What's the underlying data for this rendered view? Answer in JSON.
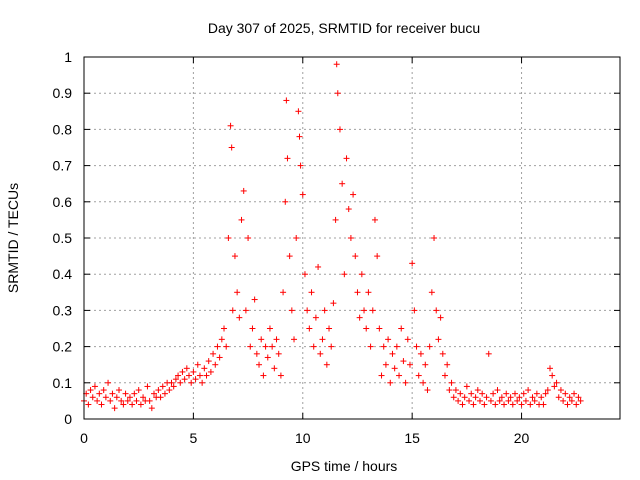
{
  "chart_data": {
    "type": "scatter",
    "title": "Day 307 of 2025, SRMTID for receiver bucu",
    "xlabel": "GPS time / hours",
    "ylabel": "SRMTID / TECUs",
    "xlim": [
      0,
      24.5
    ],
    "ylim": [
      0,
      1
    ],
    "xticks": [
      0,
      5,
      10,
      15,
      20
    ],
    "xtick_labels": [
      "0",
      "5",
      "10",
      "15",
      "20"
    ],
    "yticks": [
      0,
      0.1,
      0.2,
      0.3,
      0.4,
      0.5,
      0.6,
      0.7,
      0.8,
      0.9,
      1
    ],
    "ytick_labels": [
      "0",
      "0.1",
      "0.2",
      "0.3",
      "0.4",
      "0.5",
      "0.6",
      "0.7",
      "0.8",
      "0.9",
      "1"
    ],
    "grid": true,
    "marker": "+",
    "series": [
      {
        "name": "SRMTID",
        "color": "#ff0000",
        "points": [
          [
            0.0,
            0.05
          ],
          [
            0.1,
            0.07
          ],
          [
            0.2,
            0.04
          ],
          [
            0.3,
            0.08
          ],
          [
            0.4,
            0.06
          ],
          [
            0.5,
            0.09
          ],
          [
            0.6,
            0.05
          ],
          [
            0.7,
            0.07
          ],
          [
            0.8,
            0.04
          ],
          [
            0.9,
            0.08
          ],
          [
            1.0,
            0.06
          ],
          [
            1.1,
            0.1
          ],
          [
            1.2,
            0.05
          ],
          [
            1.3,
            0.07
          ],
          [
            1.4,
            0.03
          ],
          [
            1.5,
            0.06
          ],
          [
            1.6,
            0.08
          ],
          [
            1.7,
            0.05
          ],
          [
            1.8,
            0.04
          ],
          [
            1.9,
            0.07
          ],
          [
            2.0,
            0.05
          ],
          [
            2.1,
            0.06
          ],
          [
            2.2,
            0.04
          ],
          [
            2.3,
            0.07
          ],
          [
            2.4,
            0.05
          ],
          [
            2.5,
            0.08
          ],
          [
            2.6,
            0.04
          ],
          [
            2.7,
            0.06
          ],
          [
            2.8,
            0.05
          ],
          [
            2.9,
            0.09
          ],
          [
            3.0,
            0.05
          ],
          [
            3.1,
            0.03
          ],
          [
            3.2,
            0.07
          ],
          [
            3.3,
            0.06
          ],
          [
            3.4,
            0.08
          ],
          [
            3.5,
            0.06
          ],
          [
            3.6,
            0.09
          ],
          [
            3.7,
            0.07
          ],
          [
            3.8,
            0.1
          ],
          [
            3.9,
            0.08
          ],
          [
            4.0,
            0.1
          ],
          [
            4.1,
            0.09
          ],
          [
            4.2,
            0.11
          ],
          [
            4.3,
            0.12
          ],
          [
            4.4,
            0.1
          ],
          [
            4.5,
            0.13
          ],
          [
            4.6,
            0.11
          ],
          [
            4.7,
            0.14
          ],
          [
            4.8,
            0.12
          ],
          [
            4.9,
            0.1
          ],
          [
            5.0,
            0.13
          ],
          [
            5.1,
            0.11
          ],
          [
            5.2,
            0.15
          ],
          [
            5.3,
            0.12
          ],
          [
            5.4,
            0.1
          ],
          [
            5.5,
            0.14
          ],
          [
            5.6,
            0.12
          ],
          [
            5.7,
            0.16
          ],
          [
            5.8,
            0.13
          ],
          [
            5.9,
            0.18
          ],
          [
            6.0,
            0.15
          ],
          [
            6.1,
            0.2
          ],
          [
            6.2,
            0.17
          ],
          [
            6.3,
            0.22
          ],
          [
            6.4,
            0.25
          ],
          [
            6.5,
            0.2
          ],
          [
            6.6,
            0.5
          ],
          [
            6.7,
            0.81
          ],
          [
            6.75,
            0.75
          ],
          [
            6.8,
            0.3
          ],
          [
            6.9,
            0.45
          ],
          [
            7.0,
            0.35
          ],
          [
            7.1,
            0.28
          ],
          [
            7.2,
            0.55
          ],
          [
            7.3,
            0.63
          ],
          [
            7.4,
            0.3
          ],
          [
            7.5,
            0.5
          ],
          [
            7.6,
            0.2
          ],
          [
            7.7,
            0.25
          ],
          [
            7.8,
            0.33
          ],
          [
            7.9,
            0.18
          ],
          [
            8.0,
            0.15
          ],
          [
            8.1,
            0.22
          ],
          [
            8.2,
            0.12
          ],
          [
            8.3,
            0.2
          ],
          [
            8.4,
            0.17
          ],
          [
            8.5,
            0.25
          ],
          [
            8.6,
            0.2
          ],
          [
            8.7,
            0.14
          ],
          [
            8.8,
            0.22
          ],
          [
            8.9,
            0.18
          ],
          [
            9.0,
            0.12
          ],
          [
            9.1,
            0.35
          ],
          [
            9.2,
            0.6
          ],
          [
            9.25,
            0.88
          ],
          [
            9.3,
            0.72
          ],
          [
            9.4,
            0.45
          ],
          [
            9.5,
            0.3
          ],
          [
            9.6,
            0.22
          ],
          [
            9.7,
            0.5
          ],
          [
            9.8,
            0.85
          ],
          [
            9.85,
            0.78
          ],
          [
            9.9,
            0.7
          ],
          [
            10.0,
            0.62
          ],
          [
            10.1,
            0.4
          ],
          [
            10.2,
            0.3
          ],
          [
            10.3,
            0.25
          ],
          [
            10.4,
            0.35
          ],
          [
            10.5,
            0.2
          ],
          [
            10.6,
            0.28
          ],
          [
            10.7,
            0.42
          ],
          [
            10.8,
            0.18
          ],
          [
            10.9,
            0.22
          ],
          [
            11.0,
            0.3
          ],
          [
            11.1,
            0.15
          ],
          [
            11.2,
            0.25
          ],
          [
            11.3,
            0.2
          ],
          [
            11.4,
            0.32
          ],
          [
            11.5,
            0.55
          ],
          [
            11.55,
            0.98
          ],
          [
            11.6,
            0.9
          ],
          [
            11.7,
            0.8
          ],
          [
            11.8,
            0.65
          ],
          [
            11.9,
            0.4
          ],
          [
            12.0,
            0.72
          ],
          [
            12.1,
            0.58
          ],
          [
            12.2,
            0.5
          ],
          [
            12.3,
            0.62
          ],
          [
            12.4,
            0.45
          ],
          [
            12.5,
            0.35
          ],
          [
            12.6,
            0.28
          ],
          [
            12.7,
            0.4
          ],
          [
            12.8,
            0.3
          ],
          [
            12.9,
            0.25
          ],
          [
            13.0,
            0.35
          ],
          [
            13.1,
            0.2
          ],
          [
            13.2,
            0.3
          ],
          [
            13.3,
            0.55
          ],
          [
            13.4,
            0.45
          ],
          [
            13.5,
            0.25
          ],
          [
            13.6,
            0.12
          ],
          [
            13.7,
            0.2
          ],
          [
            13.8,
            0.15
          ],
          [
            13.9,
            0.22
          ],
          [
            14.0,
            0.1
          ],
          [
            14.1,
            0.18
          ],
          [
            14.2,
            0.14
          ],
          [
            14.3,
            0.2
          ],
          [
            14.4,
            0.12
          ],
          [
            14.5,
            0.25
          ],
          [
            14.6,
            0.16
          ],
          [
            14.7,
            0.1
          ],
          [
            14.8,
            0.22
          ],
          [
            14.9,
            0.15
          ],
          [
            15.0,
            0.43
          ],
          [
            15.1,
            0.3
          ],
          [
            15.2,
            0.2
          ],
          [
            15.3,
            0.12
          ],
          [
            15.4,
            0.18
          ],
          [
            15.5,
            0.1
          ],
          [
            15.6,
            0.15
          ],
          [
            15.7,
            0.08
          ],
          [
            15.8,
            0.2
          ],
          [
            15.9,
            0.35
          ],
          [
            16.0,
            0.5
          ],
          [
            16.1,
            0.3
          ],
          [
            16.2,
            0.22
          ],
          [
            16.3,
            0.28
          ],
          [
            16.4,
            0.18
          ],
          [
            16.5,
            0.12
          ],
          [
            16.6,
            0.15
          ],
          [
            16.7,
            0.08
          ],
          [
            16.8,
            0.1
          ],
          [
            16.9,
            0.06
          ],
          [
            17.0,
            0.08
          ],
          [
            17.1,
            0.05
          ],
          [
            17.2,
            0.07
          ],
          [
            17.3,
            0.04
          ],
          [
            17.4,
            0.06
          ],
          [
            17.5,
            0.09
          ],
          [
            17.6,
            0.05
          ],
          [
            17.7,
            0.07
          ],
          [
            17.8,
            0.04
          ],
          [
            17.9,
            0.06
          ],
          [
            18.0,
            0.08
          ],
          [
            18.1,
            0.05
          ],
          [
            18.2,
            0.07
          ],
          [
            18.3,
            0.04
          ],
          [
            18.4,
            0.06
          ],
          [
            18.5,
            0.18
          ],
          [
            18.6,
            0.05
          ],
          [
            18.7,
            0.07
          ],
          [
            18.8,
            0.04
          ],
          [
            18.9,
            0.08
          ],
          [
            19.0,
            0.05
          ],
          [
            19.1,
            0.06
          ],
          [
            19.2,
            0.04
          ],
          [
            19.3,
            0.07
          ],
          [
            19.4,
            0.05
          ],
          [
            19.5,
            0.06
          ],
          [
            19.6,
            0.04
          ],
          [
            19.7,
            0.07
          ],
          [
            19.8,
            0.05
          ],
          [
            19.9,
            0.06
          ],
          [
            20.0,
            0.04
          ],
          [
            20.1,
            0.07
          ],
          [
            20.2,
            0.05
          ],
          [
            20.3,
            0.08
          ],
          [
            20.4,
            0.04
          ],
          [
            20.5,
            0.06
          ],
          [
            20.6,
            0.05
          ],
          [
            20.7,
            0.07
          ],
          [
            20.8,
            0.04
          ],
          [
            20.9,
            0.06
          ],
          [
            21.0,
            0.04
          ],
          [
            21.1,
            0.07
          ],
          [
            21.2,
            0.08
          ],
          [
            21.3,
            0.14
          ],
          [
            21.4,
            0.12
          ],
          [
            21.5,
            0.09
          ],
          [
            21.6,
            0.1
          ],
          [
            21.7,
            0.06
          ],
          [
            21.8,
            0.08
          ],
          [
            21.9,
            0.05
          ],
          [
            22.0,
            0.07
          ],
          [
            22.1,
            0.04
          ],
          [
            22.2,
            0.06
          ],
          [
            22.3,
            0.05
          ],
          [
            22.4,
            0.07
          ],
          [
            22.5,
            0.04
          ],
          [
            22.6,
            0.06
          ],
          [
            22.7,
            0.05
          ]
        ]
      }
    ]
  }
}
